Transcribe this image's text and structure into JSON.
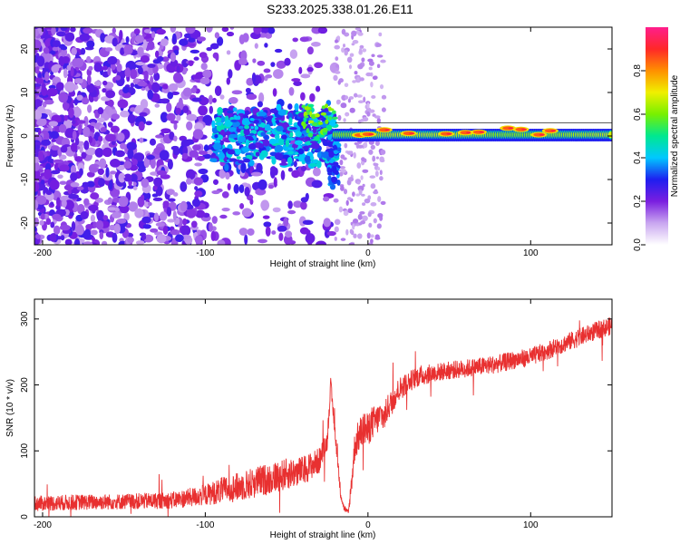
{
  "title": "S233.2025.338.01.26.E11",
  "chart_data": [
    {
      "type": "heatmap",
      "title": "S233.2025.338.01.26.E11",
      "xlabel": "Height of straight line (km)",
      "ylabel": "Frequency (Hz)",
      "xlim": [
        -205,
        150
      ],
      "ylim": [
        -25,
        25
      ],
      "xticks": [
        -200,
        -100,
        0,
        100
      ],
      "xtick_labels": [
        "-200",
        "-100",
        "0",
        "100"
      ],
      "yticks": [
        -20,
        -10,
        0,
        10,
        20
      ],
      "ytick_labels": [
        "-20",
        "-10",
        "0",
        "10",
        "20"
      ],
      "colorbar": {
        "label": "Normalized spectral amplitude",
        "range": [
          0,
          1
        ],
        "ticks": [
          0.0,
          0.2,
          0.4,
          0.6,
          0.8
        ],
        "tick_labels": [
          "0.0",
          "0.2",
          "0.4",
          "0.6",
          "0.8"
        ],
        "colors": [
          "#ffffff",
          "#c9a6f0",
          "#7a1ee0",
          "#1e1ef0",
          "#00c8ff",
          "#00e890",
          "#78f000",
          "#f0f000",
          "#ff9000",
          "#ff2828",
          "#ff1e8c"
        ]
      },
      "grid": false
    },
    {
      "type": "line",
      "xlabel": "Height of straight line (km)",
      "ylabel": "SNR (10 * v/v)",
      "xlim": [
        -205,
        150
      ],
      "ylim": [
        0,
        330
      ],
      "xticks": [
        -200,
        -100,
        0,
        100
      ],
      "xtick_labels": [
        "-200",
        "-100",
        "0",
        "100"
      ],
      "yticks": [
        0,
        100,
        200,
        300
      ],
      "ytick_labels": [
        "0",
        "100",
        "200",
        "300"
      ],
      "series": [
        {
          "name": "SNR",
          "color": "#e83030",
          "x": [
            -205,
            -180,
            -150,
            -120,
            -100,
            -90,
            -80,
            -70,
            -60,
            -50,
            -40,
            -30,
            -25,
            -23,
            -21,
            -19,
            -17,
            -15,
            -13,
            -12,
            -10,
            -8,
            -5,
            -2,
            0,
            2,
            5,
            8,
            10,
            12,
            15,
            18,
            20,
            25,
            30,
            40,
            50,
            60,
            70,
            80,
            90,
            100,
            110,
            120,
            130,
            140,
            150
          ],
          "values": [
            20,
            22,
            23,
            25,
            33,
            40,
            45,
            52,
            58,
            65,
            70,
            85,
            115,
            200,
            150,
            95,
            40,
            15,
            8,
            6,
            55,
            110,
            125,
            135,
            130,
            142,
            145,
            155,
            150,
            165,
            175,
            190,
            195,
            205,
            212,
            218,
            222,
            225,
            228,
            232,
            238,
            242,
            252,
            262,
            272,
            282,
            290
          ],
          "noise": [
            12,
            12,
            12,
            13,
            16,
            20,
            22,
            24,
            24,
            24,
            22,
            20,
            14,
            14,
            12,
            10,
            10,
            6,
            4,
            4,
            18,
            24,
            26,
            26,
            26,
            26,
            24,
            22,
            22,
            20,
            20,
            18,
            18,
            16,
            16,
            14,
            14,
            14,
            14,
            14,
            14,
            14,
            14,
            14,
            14,
            14,
            14
          ]
        }
      ],
      "grid": false
    }
  ]
}
